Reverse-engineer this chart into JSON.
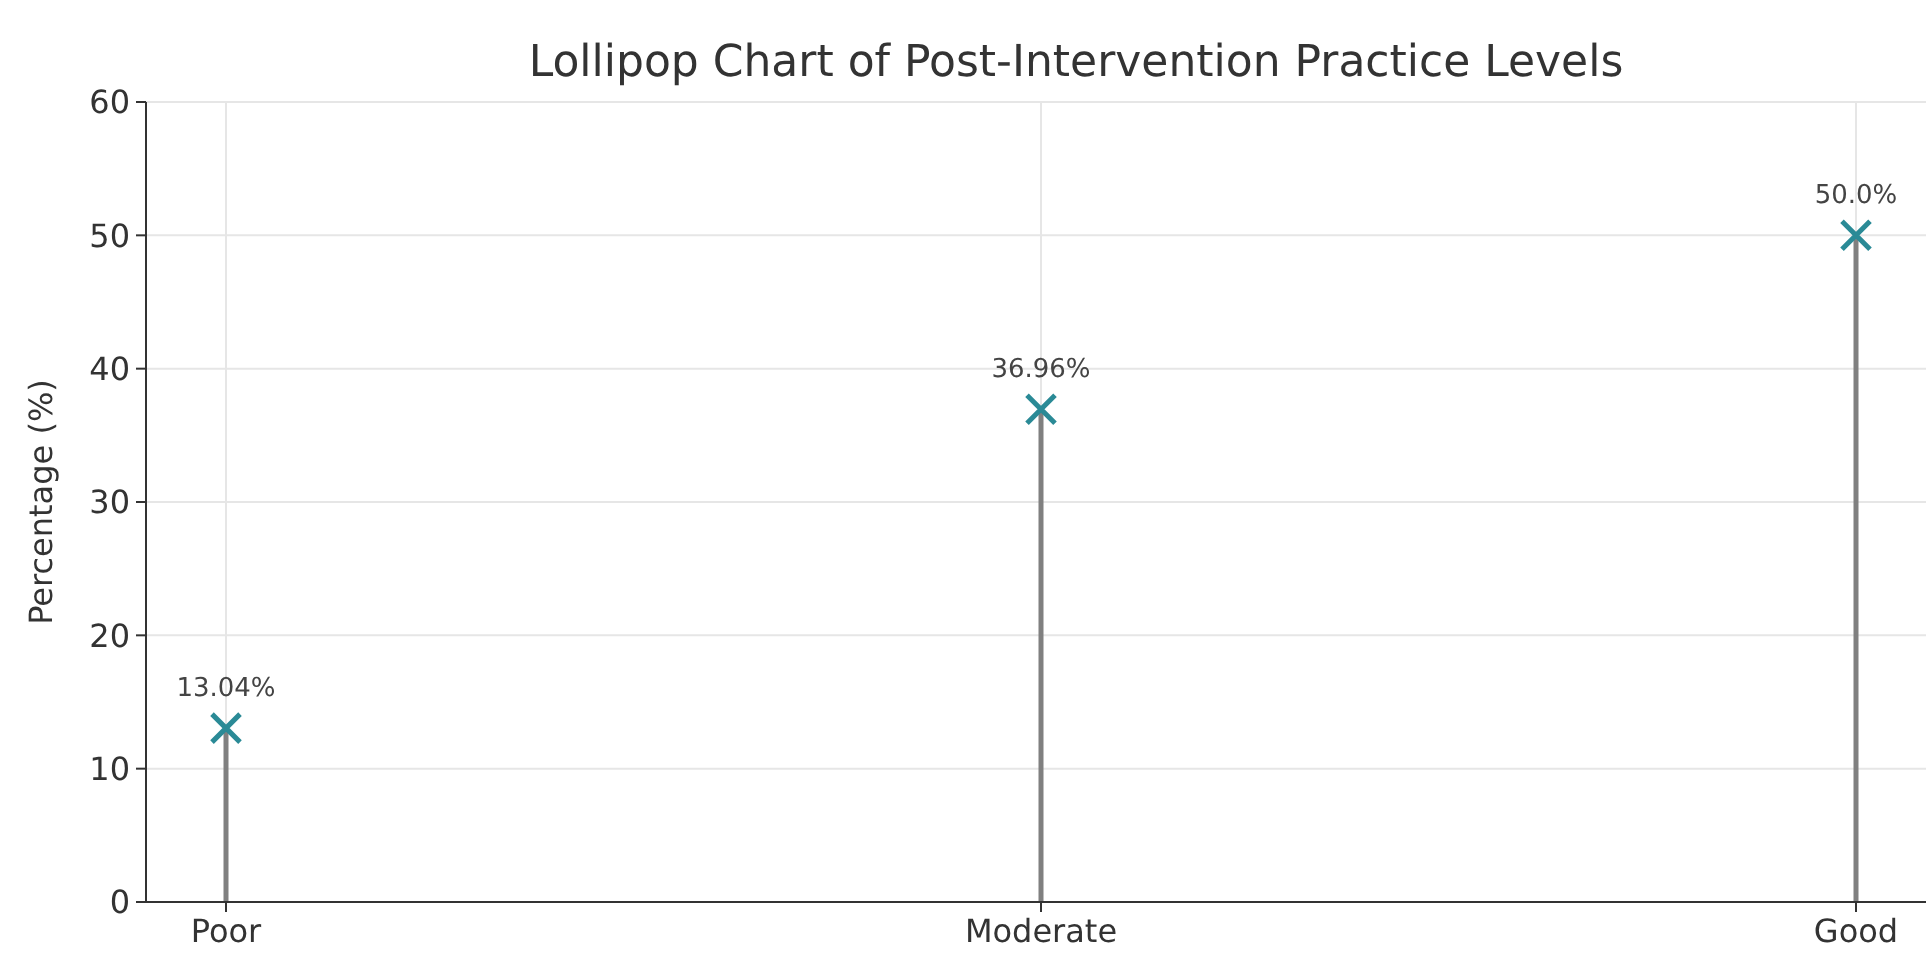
{
  "chart_data": {
    "type": "lollipop",
    "title": "Lollipop Chart of Post-Intervention Practice Levels",
    "ylabel": "Percentage (%)",
    "categories": [
      "Poor",
      "Moderate",
      "Good"
    ],
    "series": [
      {
        "color": "#2a8a96",
        "values": [
          13.04,
          36.96,
          50.0
        ],
        "value_labels": [
          "13.04%",
          "36.96%",
          "50.0%"
        ]
      }
    ],
    "ylim": [
      0,
      60
    ],
    "yticks": [
      0,
      10,
      20,
      30,
      40,
      50,
      60
    ],
    "grid": true,
    "marker": "cross"
  }
}
